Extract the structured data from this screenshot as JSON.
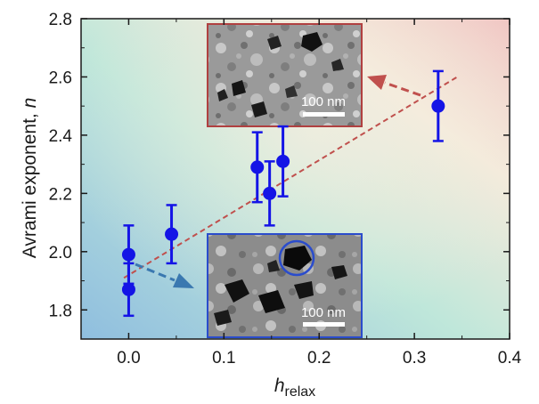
{
  "chart_data": {
    "type": "scatter",
    "title": "",
    "xlabel_main": "h",
    "xlabel_sub": "relax",
    "ylabel_text": "Avrami exponent, ",
    "ylabel_var": "n",
    "xlim": [
      -0.05,
      0.4
    ],
    "ylim": [
      1.7,
      2.8
    ],
    "xticks": [
      0.0,
      0.1,
      0.2,
      0.3,
      0.4
    ],
    "xtick_labels": [
      "0.0",
      "0.1",
      "0.2",
      "0.3",
      "0.4"
    ],
    "yticks": [
      1.8,
      2.0,
      2.2,
      2.4,
      2.6,
      2.8
    ],
    "ytick_labels": [
      "1.8",
      "2.0",
      "2.2",
      "2.4",
      "2.6",
      "2.8"
    ],
    "grid": false,
    "series": [
      {
        "x": [
          0.0,
          0.0,
          0.045,
          0.135,
          0.148,
          0.162,
          0.325
        ],
        "y": [
          1.99,
          1.87,
          2.06,
          2.29,
          2.2,
          2.31,
          2.5
        ],
        "err": [
          0.1,
          0.09,
          0.1,
          0.12,
          0.11,
          0.12,
          0.12
        ]
      }
    ],
    "trend_line": {
      "x": [
        -0.005,
        0.345
      ],
      "y": [
        1.91,
        2.6
      ]
    },
    "colors": {
      "marker": "#1414e6",
      "trend": "#c0504d",
      "arrow_upper": "#c0504d",
      "arrow_lower": "#3a78b0",
      "inset_upper_border": "#b04040",
      "inset_lower_border": "#2a4ccc"
    },
    "insets": [
      {
        "scale_label": "100 nm"
      },
      {
        "scale_label": "100 nm"
      }
    ]
  }
}
